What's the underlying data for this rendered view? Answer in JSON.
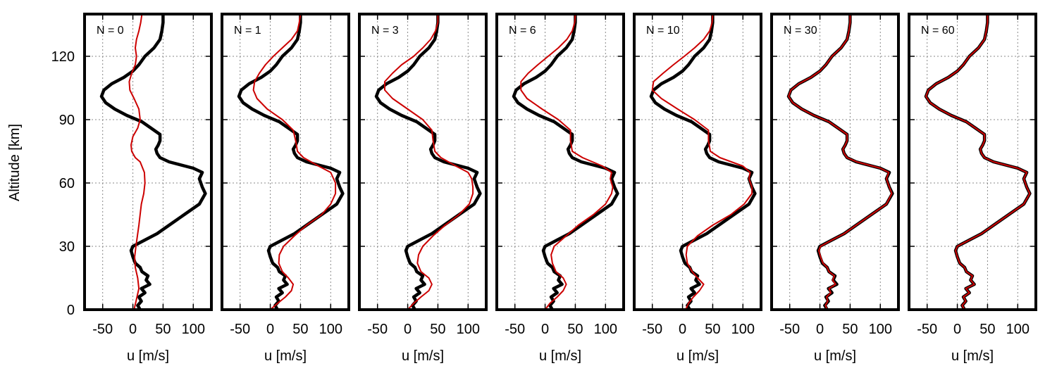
{
  "chart_data": {
    "type": "line",
    "ylabel": "Altitude [km]",
    "xlabel": "u [m/s]",
    "xlim": [
      -80,
      130
    ],
    "ylim": [
      0,
      140
    ],
    "xticks": [
      -50,
      0,
      50,
      100
    ],
    "xtick_labels": [
      "-50",
      "0",
      "50",
      "100"
    ],
    "yticks": [
      0,
      30,
      60,
      90,
      120
    ],
    "ytick_labels": [
      "0",
      "30",
      "60",
      "90",
      "120"
    ],
    "grid": true,
    "colors": {
      "reference": "#000000",
      "reconstruction": "#cc0000"
    },
    "reference_profile": {
      "y": [
        0,
        2,
        4,
        6,
        8,
        10,
        12,
        14,
        16,
        18,
        20,
        22,
        25,
        28,
        30,
        33,
        36,
        40,
        45,
        50,
        55,
        58,
        62,
        65,
        67,
        70,
        72,
        74,
        76,
        78,
        80,
        83,
        86,
        89,
        92,
        95,
        98,
        101,
        104,
        107,
        110,
        113,
        116,
        120,
        124,
        128,
        132,
        136,
        140
      ],
      "x": [
        12,
        8,
        14,
        10,
        20,
        14,
        28,
        22,
        25,
        15,
        12,
        4,
        0,
        -3,
        0,
        20,
        40,
        60,
        85,
        110,
        120,
        115,
        110,
        115,
        100,
        60,
        45,
        40,
        38,
        42,
        45,
        45,
        30,
        15,
        -10,
        -30,
        -45,
        -52,
        -48,
        -35,
        -15,
        0,
        10,
        20,
        35,
        45,
        48,
        50,
        50
      ]
    },
    "panels": [
      {
        "label": "N = 0",
        "reconstruction": {
          "y": [
            0,
            5,
            10,
            15,
            20,
            25,
            30,
            40,
            50,
            55,
            60,
            65,
            70,
            72,
            75,
            78,
            82,
            86,
            90,
            95,
            100,
            104,
            108,
            112,
            116,
            120,
            124,
            128,
            132,
            136,
            140
          ],
          "x": [
            2,
            6,
            10,
            8,
            4,
            3,
            5,
            10,
            14,
            18,
            20,
            19,
            12,
            4,
            -2,
            -3,
            0,
            8,
            12,
            10,
            2,
            -5,
            -6,
            -2,
            4,
            6,
            4,
            6,
            10,
            13,
            15
          ]
        }
      },
      {
        "label": "N = 1",
        "reconstruction": {
          "y": [
            0,
            3,
            6,
            9,
            12,
            15,
            18,
            22,
            26,
            30,
            35,
            40,
            45,
            50,
            55,
            60,
            65,
            68,
            72,
            75,
            80,
            85,
            90,
            95,
            100,
            104,
            108,
            112,
            116,
            120,
            124,
            128,
            132,
            136,
            140
          ],
          "x": [
            0,
            12,
            25,
            35,
            38,
            30,
            20,
            14,
            15,
            22,
            40,
            60,
            85,
            100,
            108,
            108,
            100,
            80,
            55,
            45,
            42,
            38,
            20,
            -5,
            -22,
            -28,
            -26,
            -18,
            -8,
            5,
            20,
            35,
            45,
            48,
            50
          ]
        }
      },
      {
        "label": "N = 3",
        "reconstruction": {
          "y": [
            0,
            3,
            6,
            9,
            12,
            15,
            18,
            22,
            26,
            30,
            35,
            40,
            45,
            50,
            55,
            58,
            62,
            65,
            68,
            72,
            75,
            80,
            85,
            90,
            95,
            100,
            104,
            108,
            112,
            116,
            120,
            124,
            128,
            132,
            136,
            140
          ],
          "x": [
            0,
            10,
            22,
            35,
            40,
            35,
            22,
            16,
            18,
            25,
            42,
            62,
            85,
            102,
            108,
            108,
            106,
            100,
            80,
            55,
            45,
            42,
            40,
            25,
            0,
            -25,
            -38,
            -38,
            -25,
            -10,
            10,
            25,
            38,
            46,
            50,
            50
          ]
        }
      },
      {
        "label": "N = 6",
        "reconstruction": {
          "y": [
            0,
            3,
            6,
            9,
            12,
            15,
            18,
            22,
            26,
            30,
            35,
            40,
            45,
            50,
            55,
            58,
            62,
            65,
            68,
            72,
            75,
            80,
            85,
            90,
            95,
            100,
            104,
            108,
            112,
            116,
            120,
            124,
            128,
            132,
            136,
            140
          ],
          "x": [
            0,
            8,
            20,
            30,
            35,
            30,
            18,
            12,
            10,
            15,
            35,
            55,
            80,
            100,
            110,
            112,
            108,
            110,
            95,
            62,
            45,
            42,
            42,
            22,
            -5,
            -30,
            -40,
            -40,
            -28,
            -12,
            5,
            22,
            36,
            45,
            49,
            50
          ]
        }
      },
      {
        "label": "N = 10",
        "reconstruction": {
          "y": [
            0,
            3,
            6,
            9,
            12,
            15,
            18,
            22,
            26,
            30,
            35,
            40,
            45,
            50,
            55,
            58,
            62,
            65,
            68,
            72,
            75,
            80,
            85,
            90,
            95,
            100,
            104,
            108,
            112,
            116,
            120,
            124,
            128,
            132,
            136,
            140
          ],
          "x": [
            5,
            10,
            18,
            28,
            35,
            25,
            16,
            8,
            6,
            8,
            25,
            50,
            80,
            102,
            115,
            115,
            110,
            112,
            100,
            62,
            46,
            43,
            43,
            20,
            -8,
            -35,
            -50,
            -48,
            -32,
            -15,
            3,
            20,
            35,
            45,
            49,
            50
          ]
        }
      },
      {
        "label": "N = 30",
        "reconstruction": {
          "y": [
            0,
            2,
            4,
            6,
            8,
            10,
            12,
            14,
            16,
            18,
            20,
            22,
            25,
            28,
            30,
            33,
            36,
            40,
            45,
            50,
            55,
            58,
            62,
            65,
            67,
            70,
            72,
            74,
            76,
            78,
            80,
            83,
            86,
            89,
            92,
            95,
            98,
            101,
            104,
            107,
            110,
            113,
            116,
            120,
            124,
            128,
            132,
            136,
            140
          ],
          "x": [
            12,
            9,
            13,
            11,
            18,
            15,
            26,
            21,
            24,
            15,
            12,
            5,
            1,
            -2,
            1,
            20,
            40,
            60,
            85,
            110,
            119,
            115,
            110,
            114,
            100,
            61,
            45,
            40,
            38,
            42,
            45,
            45,
            30,
            15,
            -10,
            -30,
            -45,
            -52,
            -48,
            -35,
            -15,
            0,
            10,
            20,
            35,
            45,
            48,
            50,
            50
          ]
        }
      },
      {
        "label": "N = 60",
        "reconstruction": {
          "y": [
            0,
            2,
            4,
            6,
            8,
            10,
            12,
            14,
            16,
            18,
            20,
            22,
            25,
            28,
            30,
            33,
            36,
            40,
            45,
            50,
            55,
            58,
            62,
            65,
            67,
            70,
            72,
            74,
            76,
            78,
            80,
            83,
            86,
            89,
            92,
            95,
            98,
            101,
            104,
            107,
            110,
            113,
            116,
            120,
            124,
            128,
            132,
            136,
            140
          ],
          "x": [
            12,
            8,
            14,
            10,
            20,
            14,
            28,
            22,
            25,
            15,
            12,
            4,
            0,
            -3,
            0,
            20,
            40,
            60,
            85,
            110,
            120,
            115,
            110,
            115,
            100,
            60,
            45,
            40,
            38,
            42,
            45,
            45,
            30,
            15,
            -10,
            -30,
            -45,
            -52,
            -48,
            -35,
            -15,
            0,
            10,
            20,
            35,
            45,
            48,
            50,
            50
          ]
        }
      }
    ]
  }
}
